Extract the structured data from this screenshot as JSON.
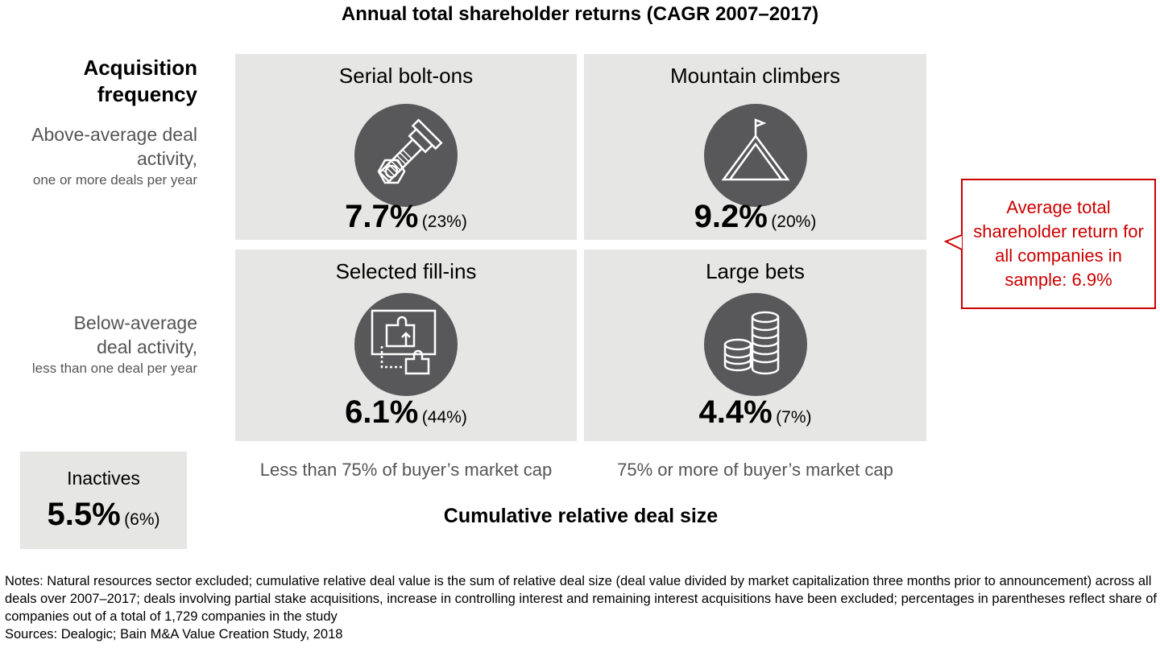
{
  "title": "Annual total shareholder returns  (CAGR 2007–2017)",
  "y_axis": {
    "title_line1": "Acquisition",
    "title_line2": "frequency",
    "rows": [
      {
        "line1": "Above-average deal",
        "line2": "activity,",
        "line3": "one or more deals per year"
      },
      {
        "line1": "Below-average",
        "line2": "deal activity,",
        "line3": "less than one deal per year"
      }
    ]
  },
  "x_axis": {
    "title": "Cumulative relative deal size",
    "columns": [
      "Less than 75% of buyer’s market cap",
      "75% or more of buyer’s market cap"
    ]
  },
  "cells": [
    {
      "name": "Serial bolt-ons",
      "value": "7.7%",
      "share": "(23%)",
      "icon": "bolt-and-nut-icon"
    },
    {
      "name": "Mountain climbers",
      "value": "9.2%",
      "share": "(20%)",
      "icon": "mountain-flag-icon"
    },
    {
      "name": "Selected fill-ins",
      "value": "6.1%",
      "share": "(44%)",
      "icon": "puzzle-piece-icon"
    },
    {
      "name": "Large bets",
      "value": "4.4%",
      "share": "(7%)",
      "icon": "coin-stacks-icon"
    }
  ],
  "inactives": {
    "name": "Inactives",
    "value": "5.5%",
    "share": "(6%)"
  },
  "callout": "Average total shareholder return for all companies in sample: 6.9%",
  "notes": "Notes: Natural resources sector excluded; cumulative relative deal value is the sum of relative deal size (deal value divided by market capitalization three months prior to announcement) across all deals over 2007–2017; deals involving partial stake acquisitions, increase in controlling interest and remaining interest acquisitions have been excluded; percentages in parentheses reflect share of companies out of a total of 1,729 companies in the study",
  "sources": "Sources: Dealogic; Bain M&A Value Creation Study, 2018",
  "colors": {
    "panel": "#e6e6e5",
    "circle": "#58585a",
    "accent": "#cc0000"
  }
}
